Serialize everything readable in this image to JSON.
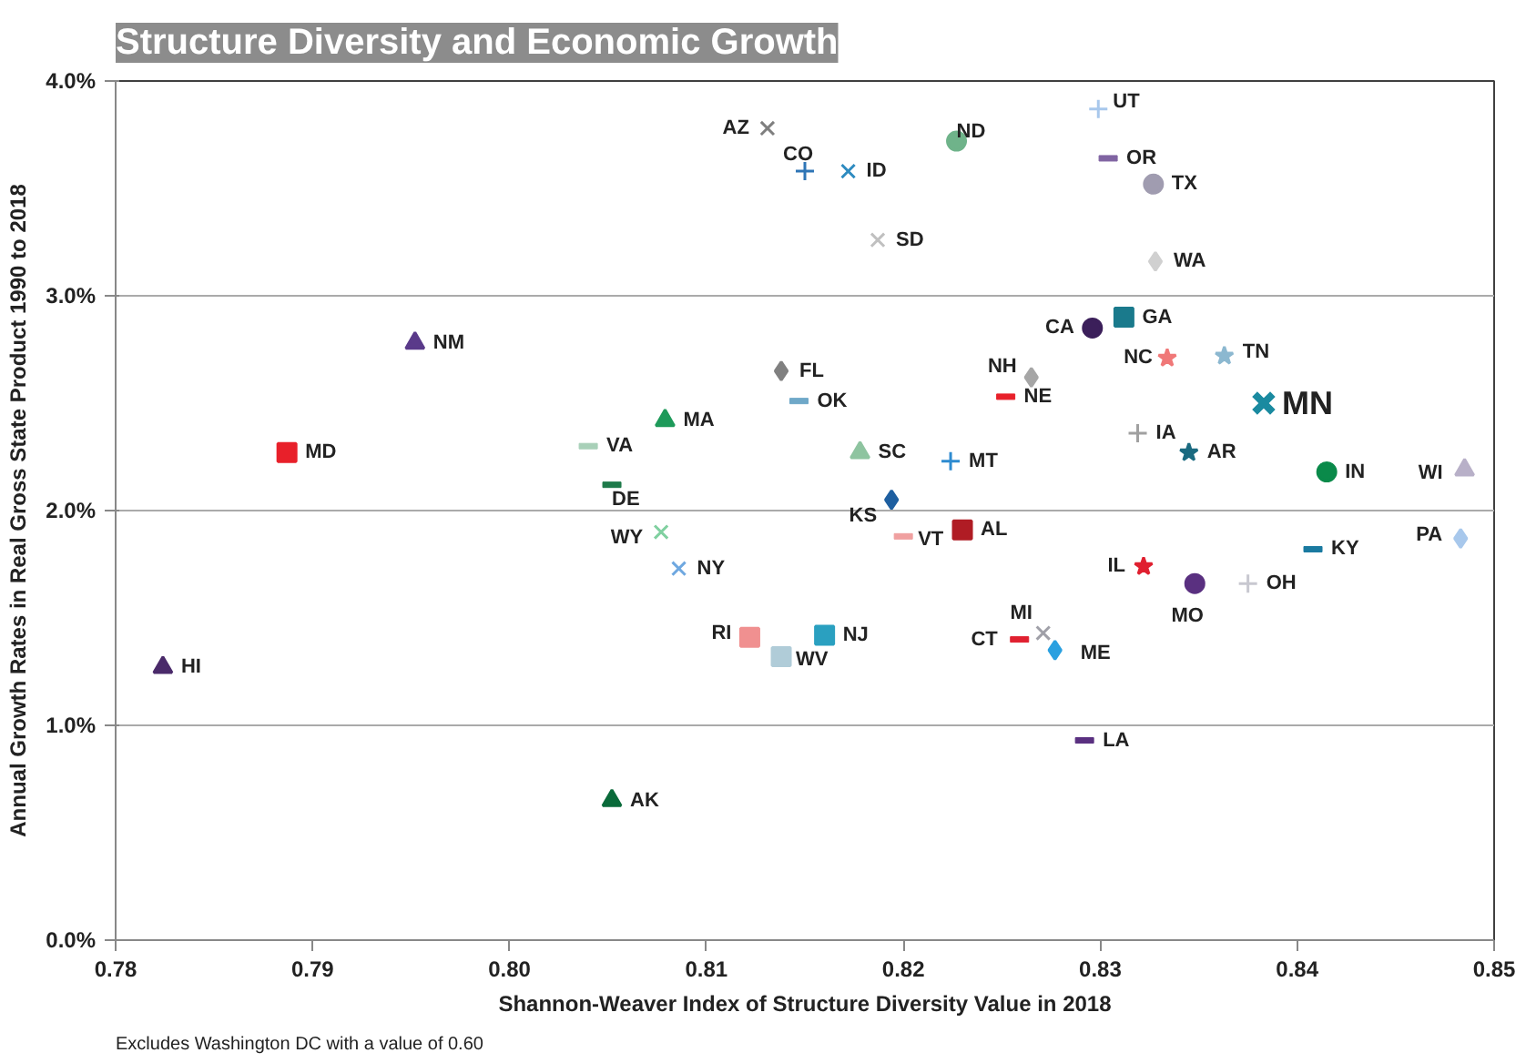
{
  "chart_data": {
    "type": "scatter",
    "title": "Structure Diversity and Economic Growth",
    "xlabel": "Shannon-Weaver Index of Structure Diversity Value in 2018",
    "ylabel": "Annual Growth Rates in Real Gross State Product 1990 to 2018",
    "annotations": [
      "Excludes Washington DC with a value  of 0.60"
    ],
    "xlim": [
      0.78,
      0.85
    ],
    "xticks": [
      {
        "value": 0.78,
        "label": "0.78"
      },
      {
        "value": 0.79,
        "label": "0.79"
      },
      {
        "value": 0.8,
        "label": "0.80"
      },
      {
        "value": 0.81,
        "label": "0.81"
      },
      {
        "value": 0.82,
        "label": "0.82"
      },
      {
        "value": 0.83,
        "label": "0.83"
      },
      {
        "value": 0.84,
        "label": "0.84"
      },
      {
        "value": 0.85,
        "label": "0.85"
      }
    ],
    "ylim": [
      0,
      4
    ],
    "yticks": [
      {
        "value": 0,
        "label": "0.0%"
      },
      {
        "value": 1,
        "label": "1.0%"
      },
      {
        "value": 2,
        "label": "2.0%"
      },
      {
        "value": 3,
        "label": "3.0%"
      },
      {
        "value": 4,
        "label": "4.0%"
      }
    ],
    "grid": "y",
    "series": [
      {
        "name": "AZ",
        "color": "#7f7f7f",
        "marker": "x",
        "x": [
          0.8131
        ],
        "values": [
          3.78
        ]
      },
      {
        "name": "CO",
        "color": "#2e75b6",
        "marker": "cross",
        "x": [
          0.815
        ],
        "values": [
          3.58
        ]
      },
      {
        "name": "ID",
        "color": "#2e8bc0",
        "marker": "x",
        "x": [
          0.8172
        ],
        "values": [
          3.58
        ]
      },
      {
        "name": "ND",
        "color": "#6fb38a",
        "marker": "circle",
        "x": [
          0.8227
        ],
        "values": [
          3.72
        ]
      },
      {
        "name": "UT",
        "color": "#a8c8ec",
        "marker": "cross",
        "x": [
          0.8299
        ],
        "values": [
          3.87
        ]
      },
      {
        "name": "OR",
        "color": "#8064a2",
        "x": [
          0.8304
        ],
        "values": [
          3.64
        ]
      },
      {
        "name": "TX",
        "color": "#a09cb0",
        "marker": "circle",
        "x": [
          0.8327
        ],
        "values": [
          3.52
        ]
      },
      {
        "name": "SD",
        "color": "#c0c0c0",
        "marker": "x",
        "x": [
          0.8187
        ],
        "values": [
          3.26
        ]
      },
      {
        "name": "WA",
        "color": "#d0d0d0",
        "marker": "diamond",
        "x": [
          0.8328
        ],
        "values": [
          3.16
        ]
      },
      {
        "name": "NM",
        "color": "#5a3a8a",
        "marker": "triangle",
        "x": [
          0.7952
        ],
        "values": [
          2.78
        ]
      },
      {
        "name": "MD",
        "color": "#e8202a",
        "marker": "square",
        "x": [
          0.7887
        ],
        "values": [
          2.27
        ]
      },
      {
        "name": "CA",
        "color": "#3b1f5a",
        "marker": "circle",
        "x": [
          0.8296
        ],
        "values": [
          2.85
        ]
      },
      {
        "name": "GA",
        "color": "#1a7a8c",
        "marker": "square",
        "x": [
          0.8312
        ],
        "values": [
          2.9
        ]
      },
      {
        "name": "FL",
        "color": "#808080",
        "marker": "diamond",
        "x": [
          0.8138
        ],
        "values": [
          2.65
        ]
      },
      {
        "name": "OK",
        "color": "#6fa8c8",
        "x": [
          0.8147
        ],
        "values": [
          2.51
        ]
      },
      {
        "name": "NH",
        "color": "#a6a6a6",
        "marker": "diamond",
        "x": [
          0.8265
        ],
        "values": [
          2.62
        ]
      },
      {
        "name": "NE",
        "color": "#e8202a",
        "x": [
          0.8252
        ],
        "values": [
          2.53
        ]
      },
      {
        "name": "NC",
        "color": "#f07878",
        "marker": "star",
        "x": [
          0.8334
        ],
        "values": [
          2.71
        ]
      },
      {
        "name": "TN",
        "color": "#8cb8d0",
        "marker": "star",
        "x": [
          0.8363
        ],
        "values": [
          2.72
        ]
      },
      {
        "name": "MN",
        "color": "#1a8aa0",
        "marker": "x",
        "x": [
          0.8383
        ],
        "values": [
          2.5
        ]
      },
      {
        "name": "MA",
        "color": "#1e9a5a",
        "marker": "triangle",
        "x": [
          0.8079
        ],
        "values": [
          2.42
        ]
      },
      {
        "name": "VA",
        "color": "#a8d0b8",
        "x": [
          0.804
        ],
        "values": [
          2.3
        ]
      },
      {
        "name": "DE",
        "color": "#1e7a4a",
        "x": [
          0.8052
        ],
        "values": [
          2.12
        ]
      },
      {
        "name": "SC",
        "color": "#8ec4a0",
        "marker": "triangle",
        "x": [
          0.8178
        ],
        "values": [
          2.27
        ]
      },
      {
        "name": "MT",
        "color": "#2e8bd0",
        "marker": "cross",
        "x": [
          0.8224
        ],
        "values": [
          2.23
        ]
      },
      {
        "name": "IA",
        "color": "#a0a0a0",
        "marker": "cross",
        "x": [
          0.8319
        ],
        "values": [
          2.36
        ]
      },
      {
        "name": "AR",
        "color": "#1a6a80",
        "marker": "star",
        "x": [
          0.8345
        ],
        "values": [
          2.27
        ]
      },
      {
        "name": "IN",
        "color": "#0a8a4a",
        "marker": "circle",
        "x": [
          0.8415
        ],
        "values": [
          2.18
        ]
      },
      {
        "name": "WI",
        "color": "#b8b0c8",
        "marker": "triangle",
        "x": [
          0.8485
        ],
        "values": [
          2.19
        ]
      },
      {
        "name": "KS",
        "color": "#1e5fa0",
        "marker": "diamond",
        "x": [
          0.8194
        ],
        "values": [
          2.05
        ]
      },
      {
        "name": "WY",
        "color": "#80d0a0",
        "marker": "x",
        "x": [
          0.8077
        ],
        "values": [
          1.9
        ]
      },
      {
        "name": "NY",
        "color": "#6fa8e0",
        "marker": "x",
        "x": [
          0.8086
        ],
        "values": [
          1.73
        ]
      },
      {
        "name": "VT",
        "color": "#f0a0a0",
        "x": [
          0.82
        ],
        "values": [
          1.88
        ]
      },
      {
        "name": "AL",
        "color": "#b01c24",
        "marker": "square",
        "x": [
          0.823
        ],
        "values": [
          1.91
        ]
      },
      {
        "name": "KY",
        "color": "#1a7aa0",
        "x": [
          0.8408
        ],
        "values": [
          1.82
        ]
      },
      {
        "name": "PA",
        "color": "#a8c8ec",
        "marker": "diamond",
        "x": [
          0.8483
        ],
        "values": [
          1.87
        ]
      },
      {
        "name": "IL",
        "color": "#e02030",
        "marker": "star",
        "x": [
          0.8322
        ],
        "values": [
          1.74
        ]
      },
      {
        "name": "MO",
        "color": "#5a3080",
        "marker": "circle",
        "x": [
          0.8348
        ],
        "values": [
          1.66
        ]
      },
      {
        "name": "OH",
        "color": "#c8c8d0",
        "marker": "cross",
        "x": [
          0.8375
        ],
        "values": [
          1.66
        ]
      },
      {
        "name": "RI",
        "color": "#f09090",
        "marker": "square",
        "x": [
          0.8122
        ],
        "values": [
          1.41
        ]
      },
      {
        "name": "WV",
        "color": "#b0ccd8",
        "marker": "square",
        "x": [
          0.8138
        ],
        "values": [
          1.32
        ]
      },
      {
        "name": "NJ",
        "color": "#2aa0c0",
        "marker": "square",
        "x": [
          0.816
        ],
        "values": [
          1.42
        ]
      },
      {
        "name": "CT",
        "color": "#e02030",
        "x": [
          0.8259
        ],
        "values": [
          1.4
        ]
      },
      {
        "name": "MI",
        "color": "#a0a0a8",
        "marker": "x",
        "x": [
          0.8271
        ],
        "values": [
          1.43
        ]
      },
      {
        "name": "ME",
        "color": "#2aa0e0",
        "marker": "diamond",
        "x": [
          0.8277
        ],
        "values": [
          1.35
        ]
      },
      {
        "name": "LA",
        "color": "#5a3080",
        "x": [
          0.8292
        ],
        "values": [
          0.93
        ]
      },
      {
        "name": "HI",
        "color": "#4a2a6a",
        "marker": "triangle",
        "x": [
          0.7824
        ],
        "values": [
          1.27
        ]
      },
      {
        "name": "AK",
        "color": "#0a6a3a",
        "marker": "triangle",
        "x": [
          0.8052
        ],
        "values": [
          0.65
        ]
      }
    ]
  }
}
